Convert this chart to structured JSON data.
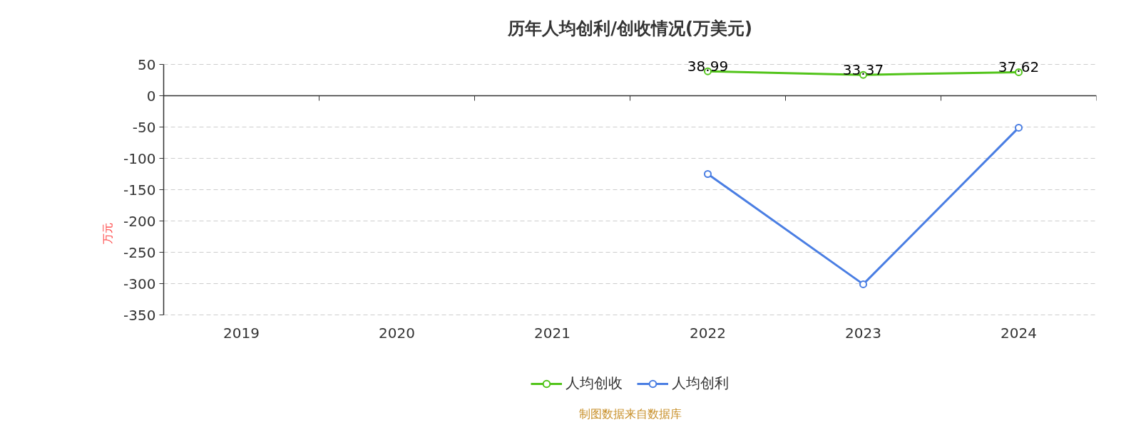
{
  "chart_data": {
    "type": "line",
    "title": "历年人均创利/创收情况(万美元)",
    "ylabel": "万元",
    "categories": [
      "2019",
      "2020",
      "2021",
      "2022",
      "2023",
      "2024"
    ],
    "series": [
      {
        "name": "人均创收",
        "color": "#52c41a",
        "values": [
          null,
          null,
          null,
          38.99,
          33.37,
          37.62
        ],
        "value_labels": [
          null,
          null,
          null,
          "38.99",
          "33.37",
          "37.62"
        ]
      },
      {
        "name": "人均创利",
        "color": "#4a7ee3",
        "values": [
          null,
          null,
          null,
          -125,
          -301,
          -51
        ]
      }
    ],
    "ylim": [
      -350,
      50
    ],
    "yticks": [
      50,
      0,
      -50,
      -100,
      -150,
      -200,
      -250,
      -300,
      -350
    ],
    "grid": "y",
    "legend": "bottom",
    "marker": "circle",
    "line_style": "solid",
    "annotations": [
      "制图数据来自数据库"
    ]
  }
}
